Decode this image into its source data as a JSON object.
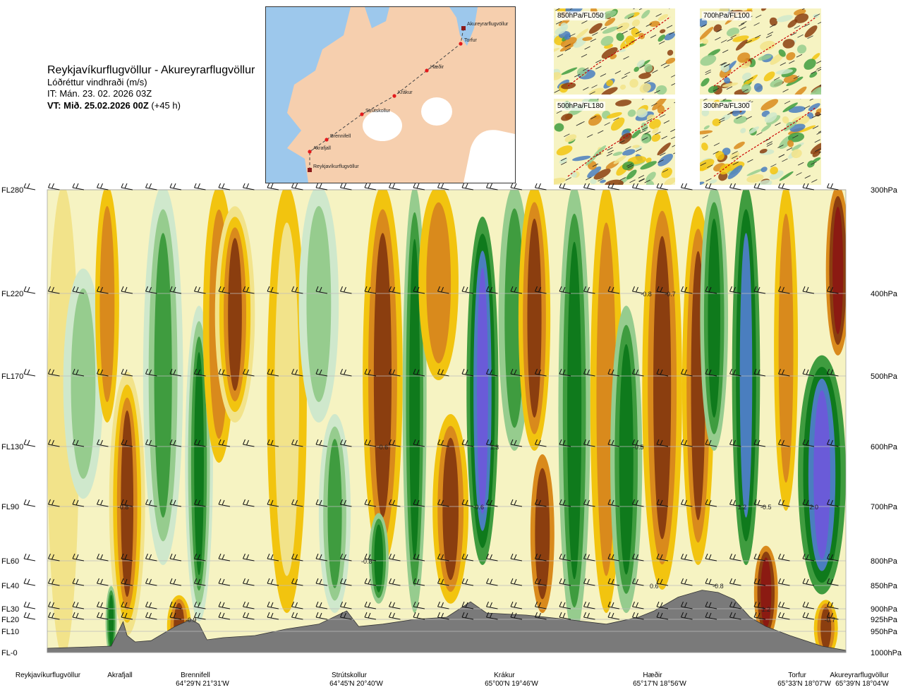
{
  "header": {
    "route": "Reykjavíkurflugvöllur - Akureyrarflugvöllur",
    "product": "Lóðréttur vindhraði (m/s)",
    "initial_time": "IT: Mán. 23. 02. 2026 03Z",
    "valid_time_bold": "VT: Mið. 25.02.2026 00Z",
    "valid_time_offset": " (+45 h)"
  },
  "route_map": {
    "waypoints": [
      "Akureyrarflugvöllur",
      "Torfur",
      "Hæðir",
      "Krákur",
      "Strútskollur",
      "Brennifell",
      "Akrafjall",
      "Reykjavíkurflugvöllur"
    ],
    "colors": {
      "sea": "#9dc8ec",
      "land": "#f6cfae",
      "ice": "#ffffff",
      "route_point": "#e31a1c"
    }
  },
  "thumbnails": [
    {
      "label": "850hPa/FL050"
    },
    {
      "label": "700hPa/FL100"
    },
    {
      "label": "500hPa/FL180"
    },
    {
      "label": "300hPa/FL300"
    }
  ],
  "chart_data": {
    "type": "heatmap",
    "title": "Lóðréttur vindhraði (m/s)",
    "y_left_levels": [
      {
        "label": "FL280",
        "hpa": 300
      },
      {
        "label": "FL220",
        "hpa": 400
      },
      {
        "label": "FL170",
        "hpa": 500
      },
      {
        "label": "FL130",
        "hpa": 600
      },
      {
        "label": "FL90",
        "hpa": 700
      },
      {
        "label": "FL60",
        "hpa": 800
      },
      {
        "label": "FL40",
        "hpa": 850
      },
      {
        "label": "FL30",
        "hpa": 900
      },
      {
        "label": "FL20",
        "hpa": 925
      },
      {
        "label": "FL10",
        "hpa": 950
      },
      {
        "label": "FL-0",
        "hpa": 1000
      }
    ],
    "y_right_labels": [
      "300hPa",
      "400hPa",
      "500hPa",
      "600hPa",
      "700hPa",
      "800hPa",
      "850hPa",
      "900hPa",
      "925hPa",
      "950hPa",
      "1000hPa"
    ],
    "ylim_hpa": [
      1000,
      300
    ],
    "x_stations": [
      {
        "name": "Reykjavíkurflugvöllur",
        "coord": ""
      },
      {
        "name": "Akrafjall",
        "coord": ""
      },
      {
        "name": "Brennifell",
        "coord": "64°29'N 21°31'W"
      },
      {
        "name": "Strútskollur",
        "coord": "64°45'N 20°40'W"
      },
      {
        "name": "Krákur",
        "coord": "65°00'N 19°46'W"
      },
      {
        "name": "Hæðir",
        "coord": "65°17'N 18°56'W"
      },
      {
        "name": "Torfur",
        "coord": "65°33'N 18°07'W"
      },
      {
        "name": "Akureyrarflugvöllur",
        "coord": "65°39'N 18°04'W"
      }
    ],
    "x_station_positions": [
      0.0,
      0.095,
      0.18,
      0.375,
      0.53,
      0.7,
      0.89,
      1.0
    ],
    "value_labels": [
      {
        "text": "-0.8",
        "x": 0.095,
        "hpa": 700
      },
      {
        "text": "-0.9",
        "x": 0.18,
        "hpa": 925
      },
      {
        "text": "-0.8",
        "x": 0.4,
        "hpa": 800
      },
      {
        "text": "-0.6",
        "x": 0.42,
        "hpa": 600
      },
      {
        "text": "1.3",
        "x": 0.56,
        "hpa": 600
      },
      {
        "text": "-0.6",
        "x": 0.54,
        "hpa": 700
      },
      {
        "text": "-0.5",
        "x": 0.74,
        "hpa": 600
      },
      {
        "text": "-0.8",
        "x": 0.75,
        "hpa": 400
      },
      {
        "text": "-0.7",
        "x": 0.78,
        "hpa": 400
      },
      {
        "text": "0.6",
        "x": 0.76,
        "hpa": 850
      },
      {
        "text": "-0.8",
        "x": 0.84,
        "hpa": 850
      },
      {
        "text": "1.2",
        "x": 0.87,
        "hpa": 700
      },
      {
        "text": "-0.5",
        "x": 0.9,
        "hpa": 700
      },
      {
        "text": "2.0",
        "x": 0.96,
        "hpa": 700
      },
      {
        "text": "1.2",
        "x": 0.9,
        "hpa": 900
      },
      {
        "text": "-0.7",
        "x": 0.98,
        "hpa": 925
      }
    ],
    "color_classes": {
      "strong_sink": "#8b1a12",
      "sink_3": "#8b3e0f",
      "sink_2": "#d98a1c",
      "sink_1": "#f2c40f",
      "weak_sink": "#f2e38a",
      "neutral": "#f6f3c2",
      "weak_rise": "#cfe8cc",
      "rise_1": "#96cc8e",
      "rise_2": "#3f9c3f",
      "rise_3": "#0f7a1c",
      "rise_4": "#4a7ebf",
      "strong_rise": "#6a5bd8"
    },
    "terrain_color": "#7a7a7a",
    "grid": true
  }
}
